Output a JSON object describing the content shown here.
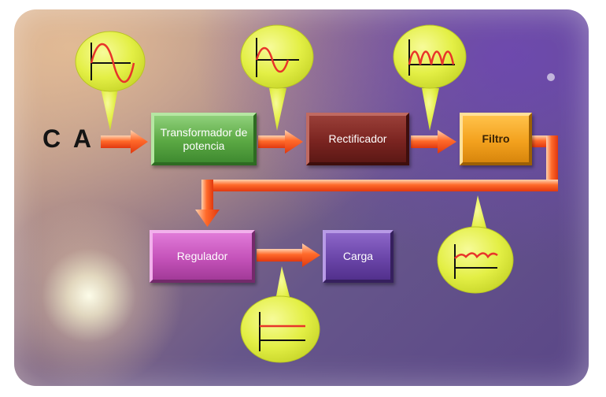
{
  "input": {
    "label": "C A"
  },
  "blocks": {
    "transformador": "Transformador de potencia",
    "rectificador": "Rectificador",
    "filtro": "Filtro",
    "regulador": "Regulador",
    "carga": "Carga"
  },
  "waveforms": {
    "after_input": "ac-sine",
    "after_transformer": "reduced-ac-sine",
    "after_rectifier": "full-wave-rectified",
    "after_filter": "dc-with-ripple",
    "after_regulator": "flat-dc"
  },
  "colors": {
    "arrow": "#ff5a1e",
    "bubble": "#e6f24d",
    "waveform": "#e8342a",
    "transformador": "#5aa843",
    "rectificador": "#7a2420",
    "filtro": "#f3a11e",
    "regulador": "#c452b9",
    "carga": "#6a45a8"
  }
}
